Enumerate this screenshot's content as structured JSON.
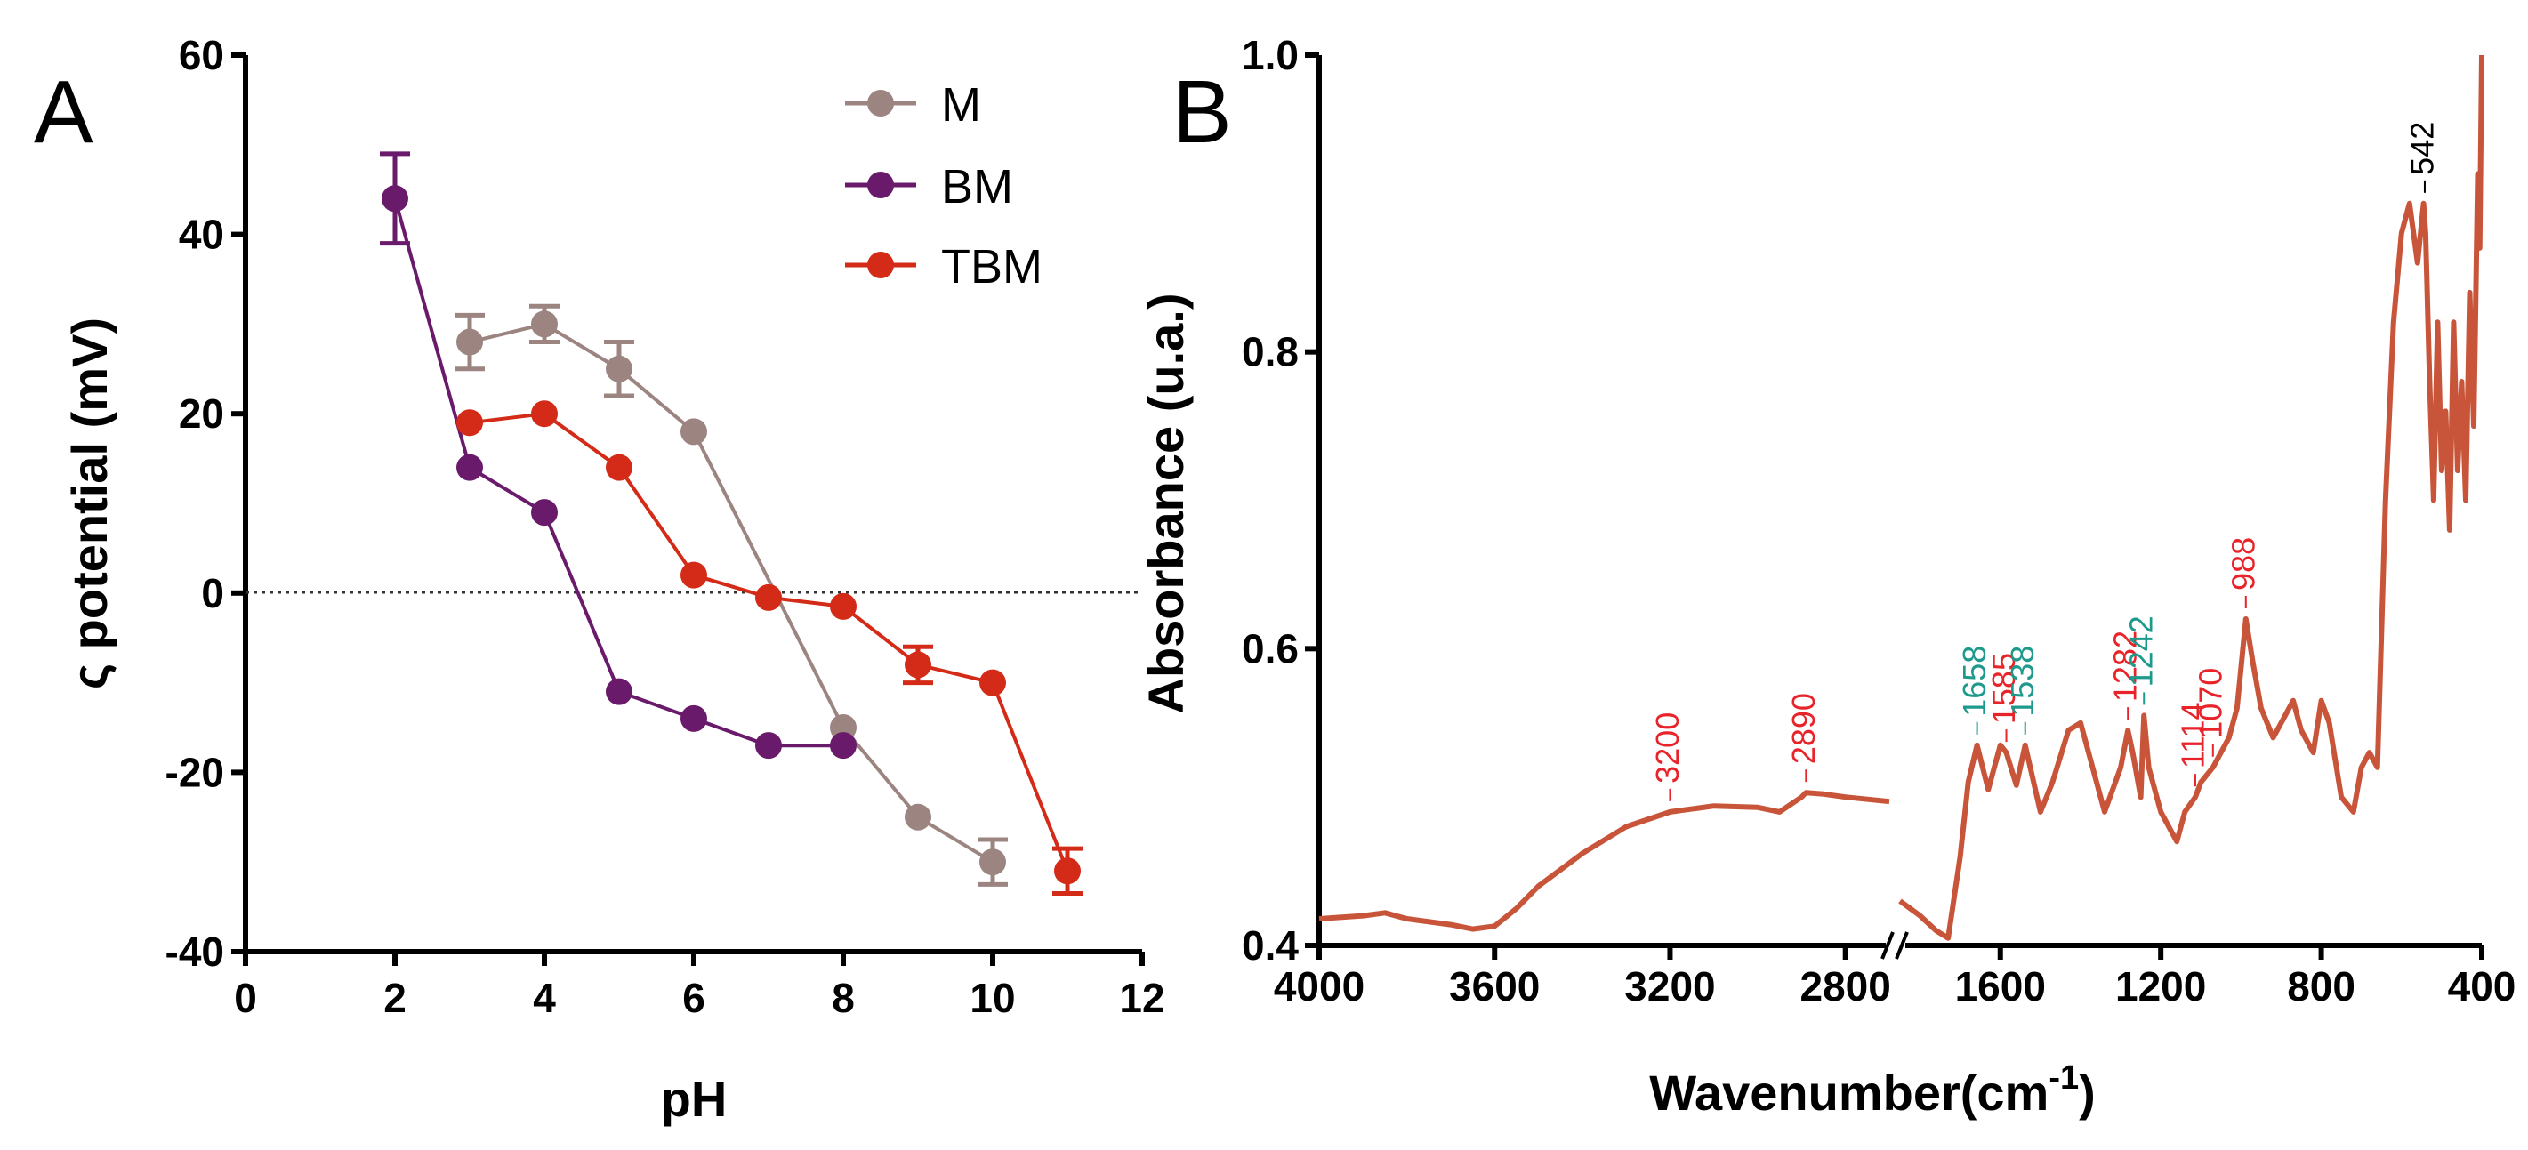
{
  "chart_data": [
    {
      "type": "line",
      "panel_label": "A",
      "xlabel": "pH",
      "ylabel": "ς potential (mV)",
      "xlim": [
        0,
        12
      ],
      "ylim": [
        -40,
        60
      ],
      "x_ticks": [
        "0",
        "2",
        "4",
        "6",
        "8",
        "10",
        "12"
      ],
      "y_ticks": [
        "60",
        "40",
        "20",
        "0",
        "-20",
        "-40"
      ],
      "reference_line": {
        "y": 0,
        "style": "dotted"
      },
      "legend_position": "top-right",
      "series": [
        {
          "name": "M",
          "color": "#9c8581",
          "x": [
            3,
            4,
            5,
            6,
            8,
            9,
            10
          ],
          "y": [
            28,
            30,
            25,
            18,
            -15,
            -25,
            -30
          ],
          "err": [
            3,
            2,
            3,
            0,
            0,
            0,
            2.5
          ]
        },
        {
          "name": "BM",
          "color": "#6a1a6a",
          "x": [
            2,
            3,
            4,
            5,
            6,
            7,
            8
          ],
          "y": [
            44,
            14,
            9,
            -11,
            -14,
            -17,
            -17
          ],
          "err": [
            5,
            0,
            0,
            0,
            0,
            0,
            0
          ]
        },
        {
          "name": "TBM",
          "color": "#d42b18",
          "x": [
            3,
            4,
            5,
            6,
            7,
            8,
            9,
            10,
            11
          ],
          "y": [
            19,
            20,
            14,
            2,
            -0.5,
            -1.5,
            -8,
            -10,
            -31
          ],
          "err": [
            0,
            0,
            0,
            0,
            0,
            0,
            2,
            0,
            2.5
          ]
        }
      ]
    },
    {
      "type": "line",
      "panel_label": "B",
      "xlabel_main": "Wavenumber(cm",
      "xlabel_sup": "-1",
      "xlabel_close": ")",
      "ylabel": "Absorbance (u.a.)",
      "ylim": [
        0.4,
        1.0
      ],
      "y_ticks": [
        "1.0",
        "0.8",
        "0.6",
        "0.4"
      ],
      "x_ticks": [
        "4000",
        "3600",
        "3200",
        "2800",
        "1600",
        "1200",
        "800",
        "400"
      ],
      "x_axis_break": true,
      "line_color": "#c8553a",
      "series": [
        {
          "name": "high_wavenumber_segment",
          "x": [
            4000,
            3900,
            3850,
            3800,
            3700,
            3650,
            3600,
            3550,
            3500,
            3400,
            3300,
            3200,
            3100,
            3000,
            2950,
            2900,
            2890,
            2850,
            2800,
            2700
          ],
          "y": [
            0.418,
            0.42,
            0.422,
            0.418,
            0.414,
            0.411,
            0.413,
            0.425,
            0.44,
            0.462,
            0.48,
            0.49,
            0.494,
            0.493,
            0.49,
            0.5,
            0.503,
            0.502,
            0.5,
            0.497
          ]
        },
        {
          "name": "low_wavenumber_segment",
          "x": [
            1850,
            1800,
            1760,
            1730,
            1700,
            1680,
            1658,
            1630,
            1600,
            1585,
            1560,
            1538,
            1500,
            1470,
            1430,
            1400,
            1380,
            1340,
            1300,
            1282,
            1270,
            1250,
            1242,
            1230,
            1200,
            1160,
            1140,
            1114,
            1100,
            1070,
            1050,
            1030,
            1010,
            988,
            970,
            950,
            920,
            900,
            870,
            850,
            820,
            800,
            780,
            750,
            720,
            700,
            680,
            660,
            640,
            620,
            600,
            580,
            560,
            545,
            540,
            530,
            520,
            510,
            500,
            490,
            480,
            470,
            460,
            450,
            440,
            430,
            420,
            410,
            405,
            400
          ],
          "y": [
            0.43,
            0.42,
            0.41,
            0.405,
            0.46,
            0.51,
            0.535,
            0.505,
            0.535,
            0.53,
            0.508,
            0.535,
            0.49,
            0.51,
            0.545,
            0.55,
            0.53,
            0.49,
            0.52,
            0.545,
            0.53,
            0.5,
            0.555,
            0.52,
            0.49,
            0.47,
            0.49,
            0.5,
            0.51,
            0.52,
            0.53,
            0.54,
            0.56,
            0.62,
            0.59,
            0.56,
            0.54,
            0.55,
            0.565,
            0.545,
            0.53,
            0.565,
            0.55,
            0.5,
            0.49,
            0.52,
            0.53,
            0.52,
            0.7,
            0.82,
            0.88,
            0.9,
            0.86,
            0.9,
            0.88,
            0.78,
            0.7,
            0.82,
            0.72,
            0.76,
            0.68,
            0.82,
            0.72,
            0.78,
            0.7,
            0.84,
            0.75,
            0.92,
            0.87,
            1.0
          ]
        }
      ],
      "annotations": [
        {
          "text": "3200",
          "x": 3200,
          "y": 0.49,
          "color": "#e8232a"
        },
        {
          "text": "2890",
          "x": 2890,
          "y": 0.503,
          "color": "#e8232a"
        },
        {
          "text": "1658",
          "x": 1658,
          "y": 0.535,
          "color": "#1e9a8c"
        },
        {
          "text": "1585",
          "x": 1585,
          "y": 0.53,
          "color": "#e8232a"
        },
        {
          "text": "1538",
          "x": 1538,
          "y": 0.535,
          "color": "#1e9a8c"
        },
        {
          "text": "1282",
          "x": 1282,
          "y": 0.545,
          "color": "#e8232a"
        },
        {
          "text": "1242",
          "x": 1242,
          "y": 0.555,
          "color": "#1e9a8c"
        },
        {
          "text": "1114",
          "x": 1114,
          "y": 0.5,
          "color": "#e8232a"
        },
        {
          "text": "1070",
          "x": 1070,
          "y": 0.52,
          "color": "#e8232a"
        },
        {
          "text": "988",
          "x": 988,
          "y": 0.62,
          "color": "#e8232a"
        },
        {
          "text": "542",
          "x": 542,
          "y": 0.9,
          "color": "#000000"
        }
      ]
    }
  ]
}
